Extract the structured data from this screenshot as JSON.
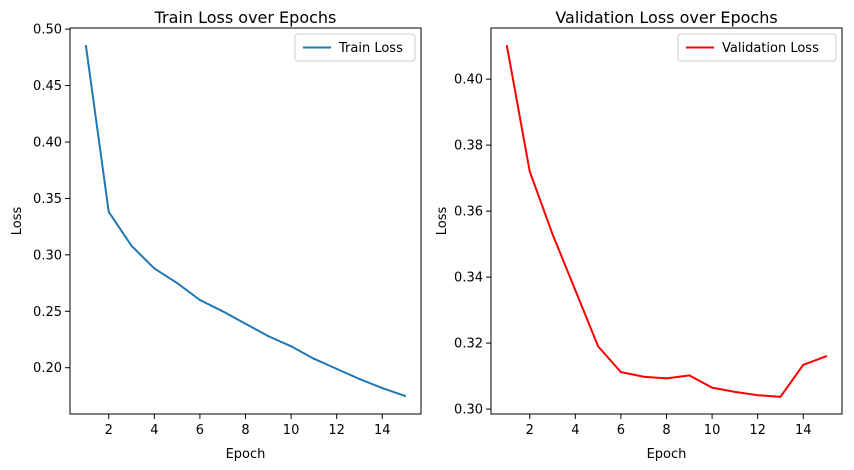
{
  "chart_data": [
    {
      "type": "line",
      "title": "Train Loss over Epochs",
      "xlabel": "Epoch",
      "ylabel": "Loss",
      "xlim": [
        0.3,
        15.7
      ],
      "ylim": [
        0.159,
        0.501
      ],
      "xticks": [
        2,
        4,
        6,
        8,
        10,
        12,
        14
      ],
      "yticks": [
        0.2,
        0.25,
        0.3,
        0.35,
        0.4,
        0.45,
        0.5
      ],
      "ytick_labels": [
        "0.20",
        "0.25",
        "0.30",
        "0.35",
        "0.40",
        "0.45",
        "0.50"
      ],
      "legend_position": "top-right",
      "grid": false,
      "series": [
        {
          "name": "Train Loss",
          "color": "#1f77b4",
          "x": [
            1,
            2,
            3,
            4,
            5,
            6,
            7,
            8,
            9,
            10,
            11,
            12,
            13,
            14,
            15
          ],
          "values": [
            0.485,
            0.338,
            0.308,
            0.288,
            0.275,
            0.26,
            0.25,
            0.239,
            0.228,
            0.219,
            0.208,
            0.199,
            0.19,
            0.182,
            0.175
          ]
        }
      ]
    },
    {
      "type": "line",
      "title": "Validation Loss over Epochs",
      "xlabel": "Epoch",
      "ylabel": "Loss",
      "xlim": [
        0.3,
        15.7
      ],
      "ylim": [
        0.2985,
        0.4155
      ],
      "xticks": [
        2,
        4,
        6,
        8,
        10,
        12,
        14
      ],
      "yticks": [
        0.3,
        0.32,
        0.34,
        0.36,
        0.38,
        0.4
      ],
      "ytick_labels": [
        "0.30",
        "0.32",
        "0.34",
        "0.36",
        "0.38",
        "0.40"
      ],
      "legend_position": "top-right",
      "grid": false,
      "series": [
        {
          "name": "Validation Loss",
          "color": "#ff0000",
          "x": [
            1,
            2,
            3,
            4,
            5,
            6,
            7,
            8,
            9,
            10,
            11,
            12,
            13,
            14,
            15
          ],
          "values": [
            0.41,
            0.372,
            0.353,
            0.336,
            0.319,
            0.3112,
            0.3098,
            0.3093,
            0.3102,
            0.3065,
            0.3052,
            0.3042,
            0.3037,
            0.3134,
            0.316
          ]
        }
      ]
    }
  ]
}
